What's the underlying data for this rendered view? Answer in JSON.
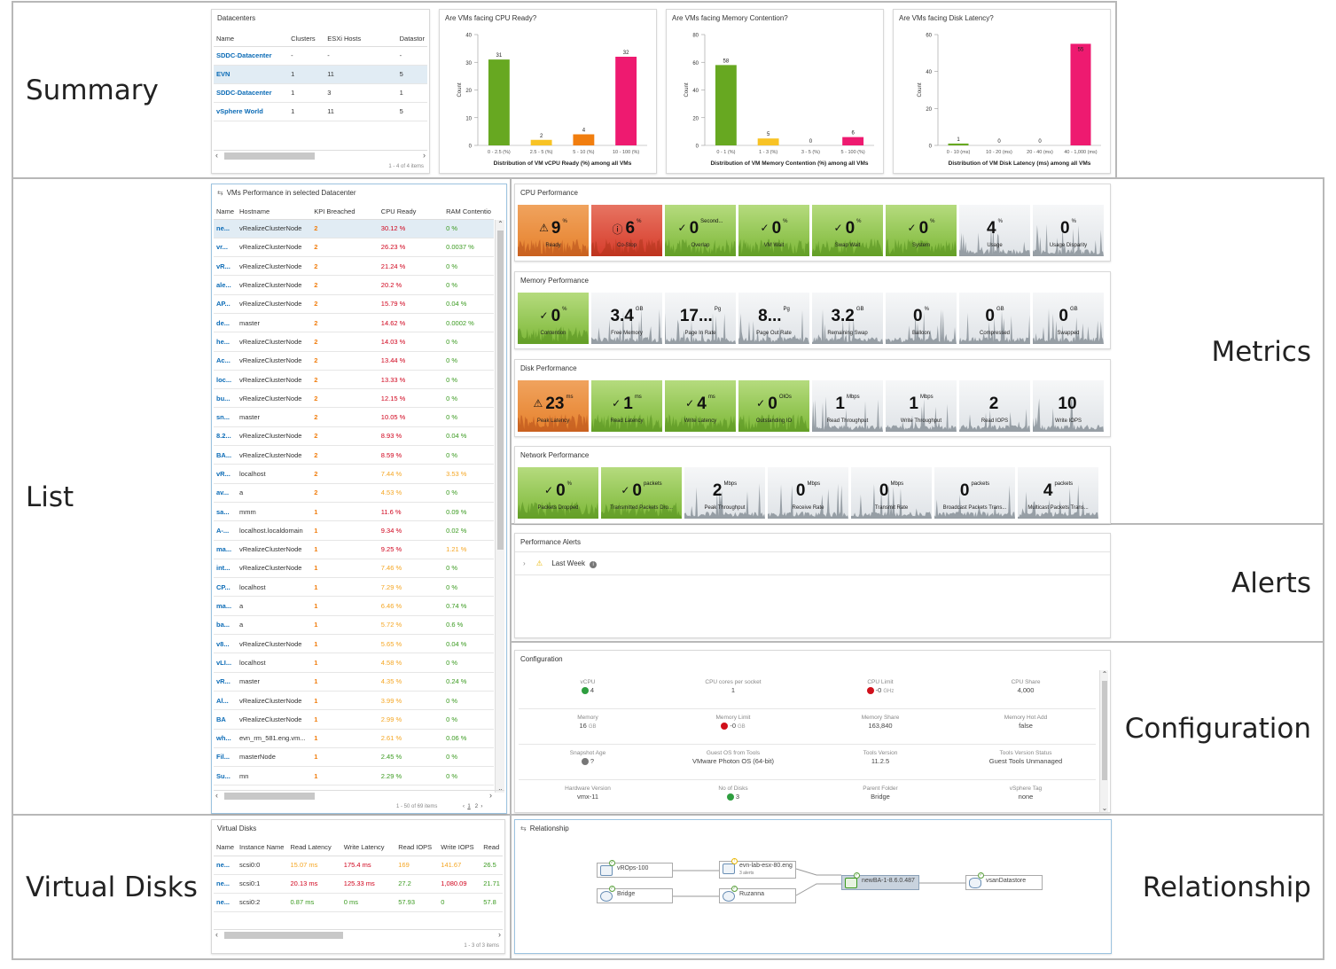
{
  "sections": {
    "summary": "Summary",
    "list": "List",
    "metrics": "Metrics",
    "alerts": "Alerts",
    "configuration": "Configuration",
    "virtual_disks": "Virtual Disks",
    "relationship": "Relationship"
  },
  "datacenters": {
    "title": "Datacenters",
    "columns": [
      "Name",
      "Clusters",
      "ESXi Hosts",
      "Datastor"
    ],
    "rows": [
      [
        "SDDC-Datacenter",
        "-",
        "-",
        "-"
      ],
      [
        "EVN",
        "1",
        "11",
        "5"
      ],
      [
        "SDDC-Datacenter",
        "1",
        "3",
        "1"
      ],
      [
        "vSphere World",
        "1",
        "11",
        "5"
      ]
    ],
    "footer": "1 - 4 of 4 items"
  },
  "chart_data": [
    {
      "type": "bar",
      "title": "Are VMs facing CPU Ready?",
      "xlabel": "Distribution of VM vCPU Ready (%) among all VMs",
      "ylabel": "Count",
      "categories": [
        "0 - 2.5 (%)",
        "2.5 - 5 (%)",
        "5 - 10 (%)",
        "10 - 100 (%)"
      ],
      "values": [
        31,
        2,
        4,
        32
      ],
      "colors": [
        "#67a821",
        "#f8c325",
        "#f17e0f",
        "#ee1a70"
      ],
      "ylim": [
        0,
        40
      ],
      "yticks": [
        0,
        10,
        20,
        30,
        40
      ]
    },
    {
      "type": "bar",
      "title": "Are VMs facing Memory Contention?",
      "xlabel": "Distribution of VM Memory Contention (%) among all VMs",
      "ylabel": "Count",
      "categories": [
        "0 - 1 (%)",
        "1 - 3 (%)",
        "3 - 5 (%)",
        "5 - 100 (%)"
      ],
      "values": [
        58,
        5,
        0,
        6
      ],
      "colors": [
        "#67a821",
        "#f8c325",
        "#f17e0f",
        "#ee1a70"
      ],
      "ylim": [
        0,
        80
      ],
      "yticks": [
        0,
        20,
        40,
        60,
        80
      ]
    },
    {
      "type": "bar",
      "title": "Are VMs facing Disk Latency?",
      "xlabel": "Distribution of VM Disk Latency (ms) among all VMs",
      "ylabel": "Count",
      "categories": [
        "0 - 10 (ms)",
        "10 - 20 (ms)",
        "20 - 40 (ms)",
        "40 - 1,000 (ms)"
      ],
      "values": [
        1,
        0,
        0,
        55
      ],
      "colors": [
        "#67a821",
        "#f8c325",
        "#f17e0f",
        "#ee1a70"
      ],
      "ylim": [
        0,
        60
      ],
      "yticks": [
        0,
        20,
        40,
        60
      ]
    }
  ],
  "vm_list": {
    "title": "VMs Performance in selected Datacenter",
    "columns": [
      "Name",
      "Hostname",
      "KPI Breached",
      "CPU Ready",
      "RAM Contentio"
    ],
    "rows": [
      [
        "ne...",
        "vRealizeClusterNode",
        "2",
        "30.12 %",
        "0 %"
      ],
      [
        "vr...",
        "vRealizeClusterNode",
        "2",
        "26.23 %",
        "0.0037 %"
      ],
      [
        "vR...",
        "vRealizeClusterNode",
        "2",
        "21.24 %",
        "0 %"
      ],
      [
        "ale...",
        "vRealizeClusterNode",
        "2",
        "20.2 %",
        "0 %"
      ],
      [
        "AP...",
        "vRealizeClusterNode",
        "2",
        "15.79 %",
        "0.04 %"
      ],
      [
        "de...",
        "master",
        "2",
        "14.62 %",
        "0.0002 %"
      ],
      [
        "he...",
        "vRealizeClusterNode",
        "2",
        "14.03 %",
        "0 %"
      ],
      [
        "Ac...",
        "vRealizeClusterNode",
        "2",
        "13.44 %",
        "0 %"
      ],
      [
        "loc...",
        "vRealizeClusterNode",
        "2",
        "13.33 %",
        "0 %"
      ],
      [
        "bu...",
        "vRealizeClusterNode",
        "2",
        "12.15 %",
        "0 %"
      ],
      [
        "sn...",
        "master",
        "2",
        "10.05 %",
        "0 %"
      ],
      [
        "8.2...",
        "vRealizeClusterNode",
        "2",
        "8.93 %",
        "0.04 %"
      ],
      [
        "BA...",
        "vRealizeClusterNode",
        "2",
        "8.59 %",
        "0 %"
      ],
      [
        "vR...",
        "localhost",
        "2",
        "7.44 %",
        "3.53 %"
      ],
      [
        "av...",
        "a",
        "2",
        "4.53 %",
        "0 %"
      ],
      [
        "sa...",
        "mmm",
        "1",
        "11.6 %",
        "0.09 %"
      ],
      [
        "A-...",
        "localhost.localdomain",
        "1",
        "9.34 %",
        "0.02 %"
      ],
      [
        "ma...",
        "vRealizeClusterNode",
        "1",
        "9.25 %",
        "1.21 %"
      ],
      [
        "int...",
        "vRealizeClusterNode",
        "1",
        "7.46 %",
        "0 %"
      ],
      [
        "CP...",
        "localhost",
        "1",
        "7.29 %",
        "0 %"
      ],
      [
        "ma...",
        "a",
        "1",
        "6.46 %",
        "0.74 %"
      ],
      [
        "ba...",
        "a",
        "1",
        "5.72 %",
        "0.6 %"
      ],
      [
        "v8...",
        "vRealizeClusterNode",
        "1",
        "5.65 %",
        "0.04 %"
      ],
      [
        "vLI...",
        "localhost",
        "1",
        "4.58 %",
        "0 %"
      ],
      [
        "vR...",
        "master",
        "1",
        "4.35 %",
        "0.24 %"
      ],
      [
        "Al...",
        "vRealizeClusterNode",
        "1",
        "3.99 %",
        "0 %"
      ],
      [
        "BA",
        "vRealizeClusterNode",
        "1",
        "2.99 %",
        "0 %"
      ],
      [
        "wh...",
        "evn_rm_581.eng.vm...",
        "1",
        "2.61 %",
        "0.06 %"
      ],
      [
        "Fil...",
        "masterNode",
        "1",
        "2.45 %",
        "0 %"
      ],
      [
        "Su...",
        "mn",
        "1",
        "2.29 %",
        "0 %"
      ]
    ],
    "cpu_colors": [
      "#d0021b",
      "#d0021b",
      "#d0021b",
      "#d0021b",
      "#d0021b",
      "#d0021b",
      "#d0021b",
      "#d0021b",
      "#d0021b",
      "#d0021b",
      "#d0021b",
      "#d0021b",
      "#d0021b",
      "#f5a623",
      "#f5a623",
      "#d0021b",
      "#d0021b",
      "#d0021b",
      "#f5a623",
      "#f5a623",
      "#f5a623",
      "#f5a623",
      "#f5a623",
      "#f5a623",
      "#f5a623",
      "#f5a623",
      "#f5a623",
      "#f5a623",
      "#3a9a1f",
      "#3a9a1f"
    ],
    "ram_colors": [
      "#3a9a1f",
      "#3a9a1f",
      "#3a9a1f",
      "#3a9a1f",
      "#3a9a1f",
      "#3a9a1f",
      "#3a9a1f",
      "#3a9a1f",
      "#3a9a1f",
      "#3a9a1f",
      "#3a9a1f",
      "#3a9a1f",
      "#3a9a1f",
      "#f5a623",
      "#3a9a1f",
      "#3a9a1f",
      "#3a9a1f",
      "#f5a623",
      "#3a9a1f",
      "#3a9a1f",
      "#3a9a1f",
      "#3a9a1f",
      "#3a9a1f",
      "#3a9a1f",
      "#3a9a1f",
      "#3a9a1f",
      "#3a9a1f",
      "#3a9a1f",
      "#3a9a1f",
      "#3a9a1f"
    ],
    "footer": "1 - 50 of 69 items",
    "pages": [
      "1",
      "2"
    ]
  },
  "metrics": {
    "groups": [
      {
        "title": "CPU Performance",
        "tiles": [
          {
            "value": "9",
            "unit": "%",
            "label": "Ready",
            "style": "orange",
            "icon": "warning-icon"
          },
          {
            "value": "6",
            "unit": "%",
            "label": "Co-Stop",
            "style": "red",
            "icon": "error-icon"
          },
          {
            "value": "0",
            "unit": "Second...",
            "label": "Overlap",
            "style": "green",
            "icon": "check-icon"
          },
          {
            "value": "0",
            "unit": "%",
            "label": "VM Wait",
            "style": "green",
            "icon": "check-icon"
          },
          {
            "value": "0",
            "unit": "%",
            "label": "Swap Wait",
            "style": "green",
            "icon": "check-icon"
          },
          {
            "value": "0",
            "unit": "%",
            "label": "System",
            "style": "green",
            "icon": "check-icon"
          },
          {
            "value": "4",
            "unit": "%",
            "label": "Usage",
            "style": "gray",
            "icon": ""
          },
          {
            "value": "0",
            "unit": "%",
            "label": "Usage Disparity",
            "style": "gray",
            "icon": ""
          }
        ]
      },
      {
        "title": "Memory Performance",
        "tiles": [
          {
            "value": "0",
            "unit": "%",
            "label": "Contention",
            "style": "green",
            "icon": "check-icon"
          },
          {
            "value": "3.4",
            "unit": "GB",
            "label": "Free Memory",
            "style": "gray",
            "icon": ""
          },
          {
            "value": "17...",
            "unit": "Pg",
            "label": "Page In Rate",
            "style": "gray",
            "icon": ""
          },
          {
            "value": "8...",
            "unit": "Pg",
            "label": "Page Out Rate",
            "style": "gray",
            "icon": ""
          },
          {
            "value": "3.2",
            "unit": "GB",
            "label": "Remaining Swap",
            "style": "gray",
            "icon": ""
          },
          {
            "value": "0",
            "unit": "%",
            "label": "Balloon",
            "style": "gray",
            "icon": ""
          },
          {
            "value": "0",
            "unit": "GB",
            "label": "Compressed",
            "style": "gray",
            "icon": ""
          },
          {
            "value": "0",
            "unit": "GB",
            "label": "Swapped",
            "style": "gray",
            "icon": ""
          }
        ]
      },
      {
        "title": "Disk Performance",
        "tiles": [
          {
            "value": "23",
            "unit": "ms",
            "label": "Peak Latency",
            "style": "orange",
            "icon": "warning-icon"
          },
          {
            "value": "1",
            "unit": "ms",
            "label": "Read Latency",
            "style": "green",
            "icon": "check-icon"
          },
          {
            "value": "4",
            "unit": "ms",
            "label": "Write Latency",
            "style": "green",
            "icon": "check-icon"
          },
          {
            "value": "0",
            "unit": "OIOs",
            "label": "Outstanding IO",
            "style": "green",
            "icon": "check-icon"
          },
          {
            "value": "1",
            "unit": "Mbps",
            "label": "Read Throughput",
            "style": "gray",
            "icon": ""
          },
          {
            "value": "1",
            "unit": "Mbps",
            "label": "Write Throughput",
            "style": "gray",
            "icon": ""
          },
          {
            "value": "2",
            "unit": "",
            "label": "Read IOPS",
            "style": "gray",
            "icon": ""
          },
          {
            "value": "10",
            "unit": "",
            "label": "Write IOPS",
            "style": "gray",
            "icon": ""
          }
        ]
      },
      {
        "title": "Network Performance",
        "tiles": [
          {
            "value": "0",
            "unit": "%",
            "label": "Packets Dropped",
            "style": "green",
            "icon": "check-icon"
          },
          {
            "value": "0",
            "unit": "packets",
            "label": "Transmitted Packets Dro...",
            "style": "green",
            "icon": "check-icon"
          },
          {
            "value": "2",
            "unit": "Mbps",
            "label": "Peak Throughput",
            "style": "gray",
            "icon": ""
          },
          {
            "value": "0",
            "unit": "Mbps",
            "label": "Receive Rate",
            "style": "gray",
            "icon": ""
          },
          {
            "value": "0",
            "unit": "Mbps",
            "label": "Transmit Rate",
            "style": "gray",
            "icon": ""
          },
          {
            "value": "0",
            "unit": "packets",
            "label": "Broadcast Packets Trans...",
            "style": "gray",
            "icon": ""
          },
          {
            "value": "4",
            "unit": "packets",
            "label": "Multicast Packets Trans...",
            "style": "gray",
            "icon": ""
          }
        ]
      }
    ]
  },
  "alerts": {
    "title": "Performance Alerts",
    "item": "Last Week"
  },
  "configuration": {
    "title": "Configuration",
    "rows": [
      [
        {
          "k": "vCPU",
          "v": "4",
          "dot": "#2e9e3f"
        },
        {
          "k": "CPU cores per socket",
          "v": "1",
          "dot": ""
        },
        {
          "k": "CPU Limit",
          "v": "-0",
          "unit": "GHz",
          "dot": "#d0101b"
        },
        {
          "k": "CPU Share",
          "v": "4,000",
          "dot": ""
        }
      ],
      [
        {
          "k": "Memory",
          "v": "16",
          "unit": "GB",
          "dot": ""
        },
        {
          "k": "Memory Limit",
          "v": "-0",
          "unit": "GB",
          "dot": "#d0101b"
        },
        {
          "k": "Memory Share",
          "v": "163,840",
          "dot": ""
        },
        {
          "k": "Memory Hot Add",
          "v": "false",
          "dot": ""
        }
      ],
      [
        {
          "k": "Snapshot Age",
          "v": "?",
          "dot": "#777777"
        },
        {
          "k": "Guest OS from Tools",
          "v": "VMware Photon OS (64-bit)",
          "dot": ""
        },
        {
          "k": "Tools Version",
          "v": "11.2.5",
          "dot": ""
        },
        {
          "k": "Tools Version Status",
          "v": "Guest Tools Unmanaged",
          "dot": ""
        }
      ],
      [
        {
          "k": "Hardware Version",
          "v": "vmx-11",
          "dot": ""
        },
        {
          "k": "No of Disks",
          "v": "3",
          "dot": "#2e9e3f"
        },
        {
          "k": "Parent Folder",
          "v": "Bridge",
          "dot": ""
        },
        {
          "k": "vSphere Tag",
          "v": "none",
          "dot": ""
        }
      ]
    ]
  },
  "virtual_disks": {
    "title": "Virtual Disks",
    "columns": [
      "Name",
      "Instance Name",
      "Read Latency",
      "Write Latency",
      "Read IOPS",
      "Write IOPS",
      "Read"
    ],
    "rows": [
      [
        "ne...",
        "scsi0:0",
        "15.07 ms",
        "175.4 ms",
        "169",
        "141.67",
        "26.5"
      ],
      [
        "ne...",
        "scsi0:1",
        "20.13 ms",
        "125.33 ms",
        "27.2",
        "1,080.09",
        "21.71"
      ],
      [
        "ne...",
        "scsi0:2",
        "0.87 ms",
        "0 ms",
        "57.93",
        "0",
        "57.8"
      ]
    ],
    "colors": [
      [
        "#0b6bb6",
        "#333",
        "#f5a623",
        "#d0021b",
        "#f5a623",
        "#f5a623",
        "#3a9a1f"
      ],
      [
        "#0b6bb6",
        "#333",
        "#d0021b",
        "#d0021b",
        "#3a9a1f",
        "#d0021b",
        "#3a9a1f"
      ],
      [
        "#0b6bb6",
        "#333",
        "#3a9a1f",
        "#3a9a1f",
        "#3a9a1f",
        "#3a9a1f",
        "#3a9a1f"
      ]
    ],
    "footer": "1 - 3 of 3 items"
  },
  "relationship": {
    "title": "Relationship",
    "nodes": {
      "vrops": "vROps-100",
      "bridge": "Bridge",
      "host": "evn-lab-esx-80.eng",
      "host_sub": "3 alerts",
      "ruzanna": "Ruzanna",
      "vm": "newBA-1-8.6.0.487",
      "datastore": "vsanDatastore"
    }
  }
}
